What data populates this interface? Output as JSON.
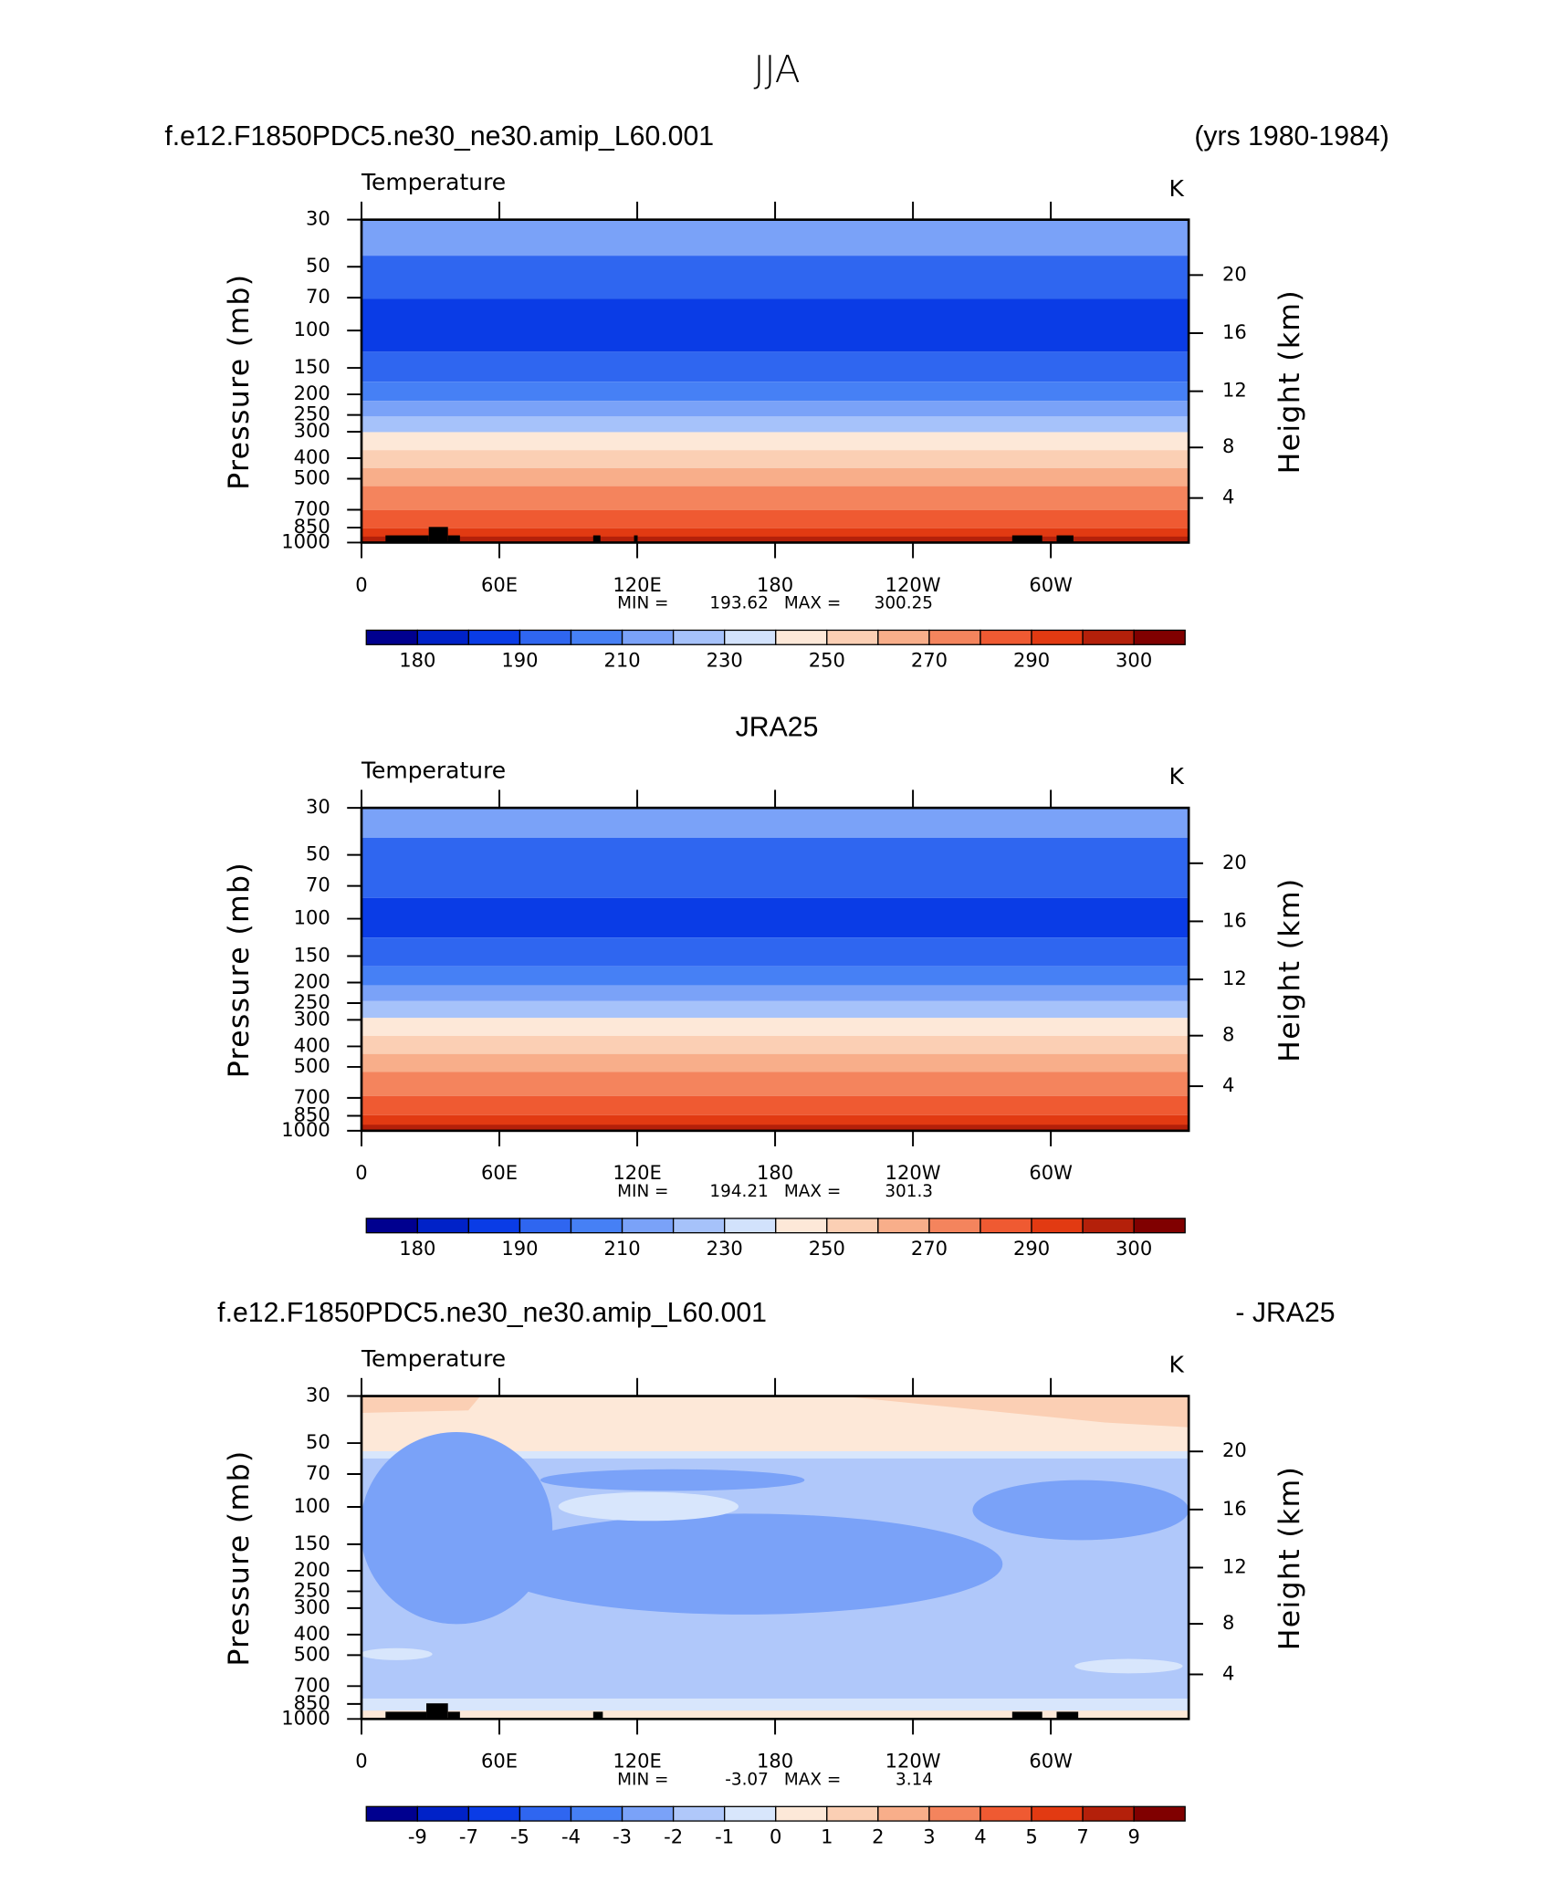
{
  "title": "JJA",
  "chart_data": [
    {
      "type": "contour",
      "title": "f.e12.F1850PDC5.ne30_ne30.amip_L60.001",
      "title_right": "(yrs 1980-1984)",
      "subtitle": "Temperature",
      "units": "K",
      "y_label": "Pressure (mb)",
      "y2_label": "Height (km)",
      "ylim": [
        1000,
        30
      ],
      "ylog": true,
      "yticks": [
        30,
        50,
        70,
        100,
        150,
        200,
        250,
        300,
        400,
        500,
        700,
        850,
        1000
      ],
      "y2ticks": [
        4,
        8,
        12,
        16,
        20
      ],
      "xlim": [
        0,
        360
      ],
      "xticks": [
        0,
        {
          "value": 60,
          "label": "60E"
        },
        {
          "value": 120,
          "label": "120E"
        },
        180,
        {
          "value": 240,
          "label": "120W"
        },
        {
          "value": 300,
          "label": "60W"
        }
      ],
      "min_label": "MIN =",
      "min": 193.62,
      "max_label": "MAX =",
      "max": 300.25,
      "colorbar": {
        "levels": [
          180,
          null,
          190,
          null,
          210,
          null,
          230,
          null,
          250,
          null,
          270,
          null,
          290,
          null,
          300
        ],
        "colors": [
          "#00008f",
          "#0022c8",
          "#0a3ce6",
          "#2f66f0",
          "#4680f5",
          "#7aa2f8",
          "#a6c2fa",
          "#d2e2fc",
          "#fde8d8",
          "#fbcfb4",
          "#f8ae8a",
          "#f4845d",
          "#ef5a32",
          "#e23a12",
          "#b4200a",
          "#800000"
        ]
      }
    },
    {
      "type": "contour",
      "title": "JRA25",
      "subtitle": "Temperature",
      "units": "K",
      "y_label": "Pressure (mb)",
      "y2_label": "Height (km)",
      "ylim": [
        1000,
        30
      ],
      "ylog": true,
      "yticks": [
        30,
        50,
        70,
        100,
        150,
        200,
        250,
        300,
        400,
        500,
        700,
        850,
        1000
      ],
      "y2ticks": [
        4,
        8,
        12,
        16,
        20
      ],
      "xlim": [
        0,
        360
      ],
      "xticks": [
        0,
        {
          "value": 60,
          "label": "60E"
        },
        {
          "value": 120,
          "label": "120E"
        },
        180,
        {
          "value": 240,
          "label": "120W"
        },
        {
          "value": 300,
          "label": "60W"
        }
      ],
      "min_label": "MIN =",
      "min": 194.21,
      "max_label": "MAX =",
      "max": 301.3,
      "colorbar": {
        "levels": [
          180,
          null,
          190,
          null,
          210,
          null,
          230,
          null,
          250,
          null,
          270,
          null,
          290,
          null,
          300
        ],
        "colors": [
          "#00008f",
          "#0022c8",
          "#0a3ce6",
          "#2f66f0",
          "#4680f5",
          "#7aa2f8",
          "#a6c2fa",
          "#d2e2fc",
          "#fde8d8",
          "#fbcfb4",
          "#f8ae8a",
          "#f4845d",
          "#ef5a32",
          "#e23a12",
          "#b4200a",
          "#800000"
        ]
      }
    },
    {
      "type": "contour",
      "title": "f.e12.F1850PDC5.ne30_ne30.amip_L60.001",
      "title_right": "- JRA25",
      "subtitle": "Temperature",
      "units": "K",
      "y_label": "Pressure (mb)",
      "y2_label": "Height (km)",
      "ylim": [
        1000,
        30
      ],
      "ylog": true,
      "yticks": [
        30,
        50,
        70,
        100,
        150,
        200,
        250,
        300,
        400,
        500,
        700,
        850,
        1000
      ],
      "y2ticks": [
        4,
        8,
        12,
        16,
        20
      ],
      "xlim": [
        0,
        360
      ],
      "xticks": [
        0,
        {
          "value": 60,
          "label": "60E"
        },
        {
          "value": 120,
          "label": "120E"
        },
        180,
        {
          "value": 240,
          "label": "120W"
        },
        {
          "value": 300,
          "label": "60W"
        }
      ],
      "min_label": "MIN =",
      "min": -3.07,
      "max_label": "MAX =",
      "max": 3.14,
      "colorbar": {
        "levels": [
          -9,
          -7,
          -5,
          -4,
          -3,
          -2,
          -1,
          0,
          1,
          2,
          3,
          4,
          5,
          7,
          9
        ],
        "colors": [
          "#00008f",
          "#0022c8",
          "#0a3ce6",
          "#2f66f0",
          "#4680f5",
          "#7aa2f8",
          "#b0c8fa",
          "#d8e6fc",
          "#fde8d8",
          "#fbcfb4",
          "#f8ae8a",
          "#f4845d",
          "#ef5a32",
          "#e23a12",
          "#b4200a",
          "#800000"
        ]
      }
    }
  ]
}
